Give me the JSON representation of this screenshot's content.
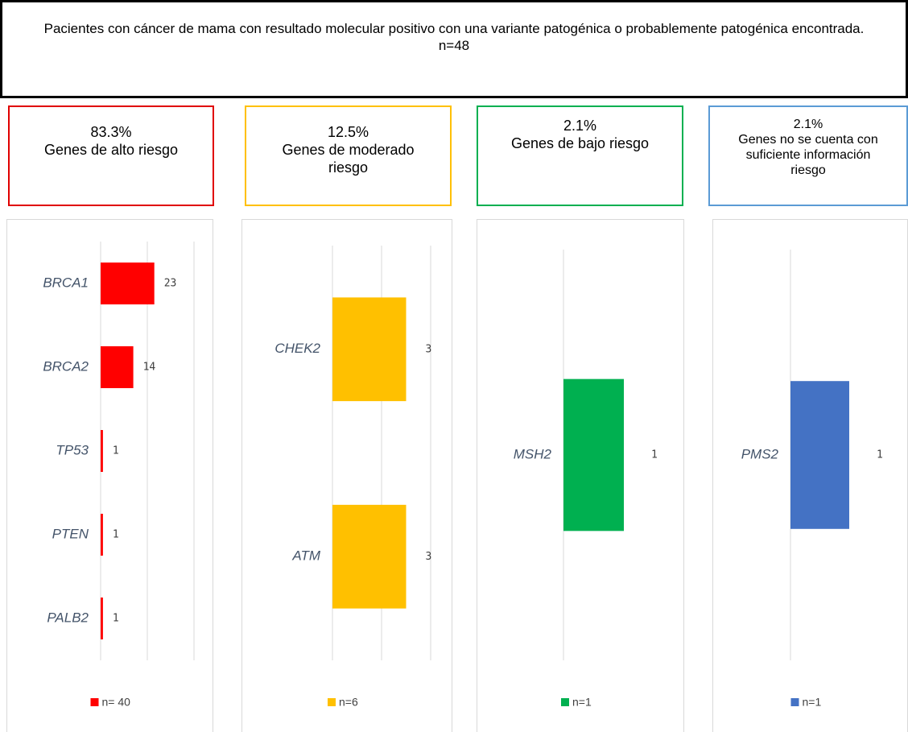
{
  "header": {
    "title": "Pacientes con cáncer de mama con resultado molecular positivo con una variante patogénica o probablemente patogénica encontrada.",
    "subtitle": "n=48"
  },
  "groups": [
    {
      "percent": "83.3%",
      "label": "Genes de alto riesgo"
    },
    {
      "percent": "12.5%",
      "label": "Genes de moderado riesgo"
    },
    {
      "percent": "2.1%",
      "label": "Genes de bajo riesgo"
    },
    {
      "percent": "2.1%",
      "label": "Genes no se cuenta con suficiente información riesgo"
    }
  ],
  "chart_data": [
    {
      "type": "bar",
      "orientation": "horizontal",
      "categories": [
        "BRCA1",
        "BRCA2",
        "TP53",
        "PTEN",
        "PALB2"
      ],
      "series": [
        {
          "name": "n= 40",
          "color": "#ff0000",
          "values": [
            23,
            14,
            1,
            1,
            1
          ]
        }
      ],
      "xlim": [
        0,
        40
      ],
      "xticks": [
        0,
        20,
        40
      ],
      "grid": true
    },
    {
      "type": "bar",
      "orientation": "horizontal",
      "categories": [
        "CHEK2",
        "ATM"
      ],
      "series": [
        {
          "name": "n=6",
          "color": "#ffc000",
          "values": [
            3,
            3
          ]
        }
      ],
      "xlim": [
        0,
        4
      ],
      "xticks": [
        0,
        2,
        4
      ],
      "grid": true
    },
    {
      "type": "bar",
      "orientation": "horizontal",
      "categories": [
        "MSH2"
      ],
      "series": [
        {
          "name": "n=1",
          "color": "#00b050",
          "values": [
            1
          ]
        }
      ],
      "xlim": [
        0,
        2
      ],
      "xticks": [
        0
      ],
      "grid": true
    },
    {
      "type": "bar",
      "orientation": "horizontal",
      "categories": [
        "PMS2"
      ],
      "series": [
        {
          "name": "n=1",
          "color": "#4472c4",
          "values": [
            1
          ]
        }
      ],
      "xlim": [
        0,
        2
      ],
      "xticks": [
        0
      ],
      "grid": true
    }
  ]
}
